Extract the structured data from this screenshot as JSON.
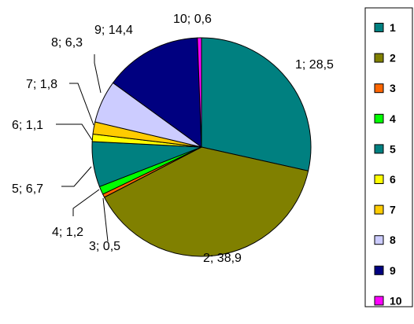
{
  "chart_data": {
    "type": "pie",
    "labels": [
      "1",
      "2",
      "3",
      "4",
      "5",
      "6",
      "7",
      "8",
      "9",
      "10"
    ],
    "values": [
      28.5,
      38.9,
      0.5,
      1.2,
      6.7,
      1.1,
      1.8,
      6.3,
      14.4,
      0.6
    ],
    "data_labels": [
      "1; 28,5",
      "2; 38,9",
      "3; 0,5",
      "4; 1,2",
      "5; 6,7",
      "6; 1,1",
      "7; 1,8",
      "8; 6,3",
      "9; 14,4",
      "10; 0,6"
    ],
    "colors": [
      "#008080",
      "#808000",
      "#FF6600",
      "#00FF00",
      "#008080",
      "#FFFF00",
      "#FFCC00",
      "#CCCCFF",
      "#000080",
      "#FF00FF"
    ],
    "start_angle_deg": 0,
    "direction": "clockwise",
    "legend": "right"
  }
}
